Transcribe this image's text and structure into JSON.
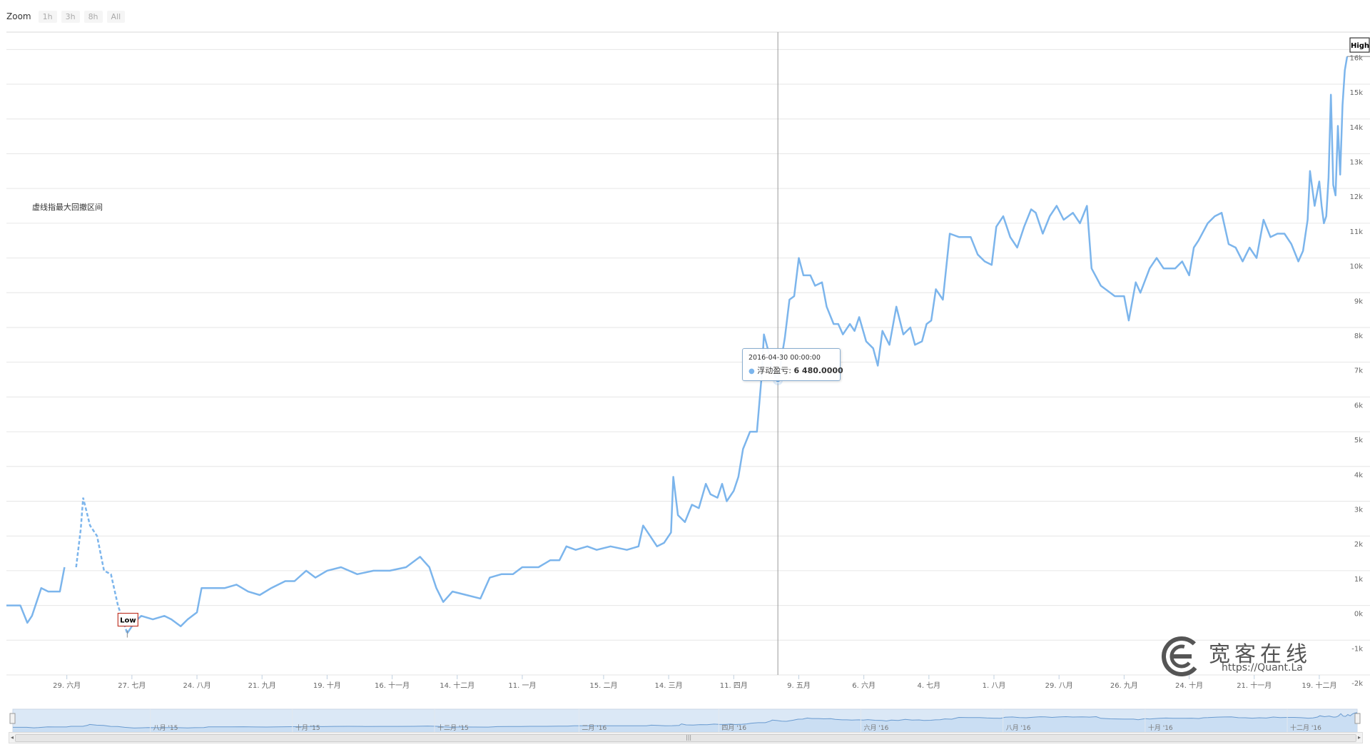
{
  "zoom": {
    "label": "Zoom",
    "buttons": [
      "1h",
      "3h",
      "8h",
      "All"
    ]
  },
  "annotation": "虚线指最大回撤区间",
  "tooltip": {
    "date": "2016-04-30 00:00:00",
    "series_label": "浮动盈亏",
    "value": "6 480.0000"
  },
  "flags": {
    "high": "High",
    "low": "Low"
  },
  "watermark": {
    "name": "宽客在线",
    "url": "https://Quant.La"
  },
  "colors": {
    "line": "#7cb5ec",
    "grid": "#e6e6e6",
    "navigator_fill": "#dbe8f6",
    "low_flag": "#c0392b"
  },
  "chart_data": {
    "type": "line",
    "title": "",
    "xlabel": "",
    "ylabel": "",
    "ylim": [
      -2000,
      16500
    ],
    "y_ticks": [
      -2000,
      -1000,
      0,
      1000,
      2000,
      3000,
      4000,
      5000,
      6000,
      7000,
      8000,
      9000,
      10000,
      11000,
      12000,
      13000,
      14000,
      15000,
      16000
    ],
    "y_tick_labels": [
      "-2k",
      "-1k",
      "0k",
      "1k",
      "2k",
      "3k",
      "4k",
      "5k",
      "6k",
      "7k",
      "8k",
      "9k",
      "10k",
      "11k",
      "12k",
      "13k",
      "14k",
      "15k",
      "16k"
    ],
    "x_tick_labels": [
      "29. 六月",
      "27. 七月",
      "24. 八月",
      "21. 九月",
      "19. 十月",
      "16. 十一月",
      "14. 十二月",
      "11. 一月",
      "15. 二月",
      "14. 三月",
      "11. 四月",
      "9. 五月",
      "6. 六月",
      "4. 七月",
      "1. 八月",
      "29. 八月",
      "26. 九月",
      "24. 十月",
      "21. 十一月",
      "19. 十二月"
    ],
    "x_tick_dates": [
      "2015-06-29",
      "2015-07-27",
      "2015-08-24",
      "2015-09-21",
      "2015-10-19",
      "2015-11-16",
      "2015-12-14",
      "2016-01-11",
      "2016-02-15",
      "2016-03-14",
      "2016-04-11",
      "2016-05-09",
      "2016-06-06",
      "2016-07-04",
      "2016-08-01",
      "2016-08-29",
      "2016-09-26",
      "2016-10-24",
      "2016-11-21",
      "2016-12-19"
    ],
    "x_range": [
      "2015-06-03",
      "2016-12-31"
    ],
    "navigator_labels": [
      "八月 '15",
      "十月 '15",
      "十二月 '15",
      "二月 '16",
      "四月 '16",
      "六月 '16",
      "八月 '16",
      "十月 '16",
      "十二月 '16"
    ],
    "navigator_dates": [
      "2015-08-01",
      "2015-10-01",
      "2015-12-01",
      "2016-02-01",
      "2016-04-01",
      "2016-06-01",
      "2016-08-01",
      "2016-10-01",
      "2016-12-01"
    ],
    "crosshair_date": "2016-04-30",
    "max_drawdown_range": [
      "2015-06-30",
      "2015-07-25"
    ],
    "low_point": {
      "x": "2015-07-25",
      "y": -800
    },
    "high_point": {
      "x": "2016-12-31",
      "y": 15800
    },
    "series": [
      {
        "points": [
          [
            "2015-06-03",
            0
          ],
          [
            "2015-06-09",
            0
          ],
          [
            "2015-06-12",
            -500
          ],
          [
            "2015-06-14",
            -300
          ],
          [
            "2015-06-18",
            500
          ],
          [
            "2015-06-21",
            400
          ],
          [
            "2015-06-26",
            400
          ],
          [
            "2015-06-28",
            1100
          ],
          [
            "2015-07-03",
            1100
          ],
          [
            "2015-07-05",
            2200
          ],
          [
            "2015-07-06",
            3100
          ],
          [
            "2015-07-09",
            2300
          ],
          [
            "2015-07-12",
            2000
          ],
          [
            "2015-07-15",
            1000
          ],
          [
            "2015-07-18",
            900
          ],
          [
            "2015-07-21",
            0
          ],
          [
            "2015-07-25",
            -800
          ],
          [
            "2015-07-28",
            -500
          ],
          [
            "2015-07-31",
            -300
          ],
          [
            "2015-08-05",
            -400
          ],
          [
            "2015-08-10",
            -300
          ],
          [
            "2015-08-13",
            -400
          ],
          [
            "2015-08-17",
            -600
          ],
          [
            "2015-08-20",
            -400
          ],
          [
            "2015-08-24",
            -200
          ],
          [
            "2015-08-26",
            500
          ],
          [
            "2015-08-28",
            500
          ],
          [
            "2015-09-05",
            500
          ],
          [
            "2015-09-10",
            600
          ],
          [
            "2015-09-15",
            400
          ],
          [
            "2015-09-20",
            300
          ],
          [
            "2015-09-25",
            500
          ],
          [
            "2015-10-01",
            700
          ],
          [
            "2015-10-05",
            700
          ],
          [
            "2015-10-10",
            1000
          ],
          [
            "2015-10-14",
            800
          ],
          [
            "2015-10-19",
            1000
          ],
          [
            "2015-10-25",
            1100
          ],
          [
            "2015-11-01",
            900
          ],
          [
            "2015-11-08",
            1000
          ],
          [
            "2015-11-15",
            1000
          ],
          [
            "2015-11-22",
            1100
          ],
          [
            "2015-11-28",
            1400
          ],
          [
            "2015-12-02",
            1100
          ],
          [
            "2015-12-05",
            500
          ],
          [
            "2015-12-08",
            100
          ],
          [
            "2015-12-12",
            400
          ],
          [
            "2015-12-18",
            300
          ],
          [
            "2015-12-24",
            200
          ],
          [
            "2015-12-28",
            800
          ],
          [
            "2016-01-02",
            900
          ],
          [
            "2016-01-07",
            900
          ],
          [
            "2016-01-11",
            1100
          ],
          [
            "2016-01-18",
            1100
          ],
          [
            "2016-01-23",
            1300
          ],
          [
            "2016-01-27",
            1300
          ],
          [
            "2016-01-30",
            1700
          ],
          [
            "2016-02-03",
            1600
          ],
          [
            "2016-02-08",
            1700
          ],
          [
            "2016-02-12",
            1600
          ],
          [
            "2016-02-18",
            1700
          ],
          [
            "2016-02-25",
            1600
          ],
          [
            "2016-03-01",
            1700
          ],
          [
            "2016-03-03",
            2300
          ],
          [
            "2016-03-06",
            2000
          ],
          [
            "2016-03-09",
            1700
          ],
          [
            "2016-03-12",
            1800
          ],
          [
            "2016-03-15",
            2100
          ],
          [
            "2016-03-16",
            3700
          ],
          [
            "2016-03-18",
            2600
          ],
          [
            "2016-03-21",
            2400
          ],
          [
            "2016-03-24",
            2900
          ],
          [
            "2016-03-27",
            2800
          ],
          [
            "2016-03-30",
            3500
          ],
          [
            "2016-04-01",
            3200
          ],
          [
            "2016-04-04",
            3100
          ],
          [
            "2016-04-06",
            3500
          ],
          [
            "2016-04-08",
            3000
          ],
          [
            "2016-04-11",
            3300
          ],
          [
            "2016-04-13",
            3700
          ],
          [
            "2016-04-15",
            4500
          ],
          [
            "2016-04-18",
            5000
          ],
          [
            "2016-04-21",
            5000
          ],
          [
            "2016-04-23",
            6600
          ],
          [
            "2016-04-24",
            7800
          ],
          [
            "2016-04-26",
            7300
          ],
          [
            "2016-04-28",
            6700
          ],
          [
            "2016-04-30",
            6480
          ],
          [
            "2016-05-03",
            7700
          ],
          [
            "2016-05-05",
            8800
          ],
          [
            "2016-05-07",
            8900
          ],
          [
            "2016-05-09",
            10000
          ],
          [
            "2016-05-11",
            9500
          ],
          [
            "2016-05-14",
            9500
          ],
          [
            "2016-05-16",
            9200
          ],
          [
            "2016-05-19",
            9300
          ],
          [
            "2016-05-21",
            8600
          ],
          [
            "2016-05-24",
            8100
          ],
          [
            "2016-05-26",
            8100
          ],
          [
            "2016-05-28",
            7800
          ],
          [
            "2016-05-31",
            8100
          ],
          [
            "2016-06-02",
            7900
          ],
          [
            "2016-06-04",
            8300
          ],
          [
            "2016-06-07",
            7600
          ],
          [
            "2016-06-10",
            7400
          ],
          [
            "2016-06-12",
            6900
          ],
          [
            "2016-06-14",
            7900
          ],
          [
            "2016-06-17",
            7500
          ],
          [
            "2016-06-20",
            8600
          ],
          [
            "2016-06-23",
            7800
          ],
          [
            "2016-06-26",
            8000
          ],
          [
            "2016-06-28",
            7500
          ],
          [
            "2016-07-01",
            7600
          ],
          [
            "2016-07-03",
            8100
          ],
          [
            "2016-07-05",
            8200
          ],
          [
            "2016-07-07",
            9100
          ],
          [
            "2016-07-10",
            8800
          ],
          [
            "2016-07-13",
            10700
          ],
          [
            "2016-07-17",
            10600
          ],
          [
            "2016-07-22",
            10600
          ],
          [
            "2016-07-25",
            10100
          ],
          [
            "2016-07-28",
            9900
          ],
          [
            "2016-07-31",
            9800
          ],
          [
            "2016-08-02",
            10900
          ],
          [
            "2016-08-05",
            11200
          ],
          [
            "2016-08-08",
            10600
          ],
          [
            "2016-08-11",
            10300
          ],
          [
            "2016-08-14",
            10900
          ],
          [
            "2016-08-17",
            11400
          ],
          [
            "2016-08-19",
            11300
          ],
          [
            "2016-08-22",
            10700
          ],
          [
            "2016-08-25",
            11200
          ],
          [
            "2016-08-28",
            11500
          ],
          [
            "2016-08-31",
            11100
          ],
          [
            "2016-09-04",
            11300
          ],
          [
            "2016-09-07",
            11000
          ],
          [
            "2016-09-10",
            11500
          ],
          [
            "2016-09-12",
            9700
          ],
          [
            "2016-09-16",
            9200
          ],
          [
            "2016-09-22",
            8900
          ],
          [
            "2016-09-26",
            8900
          ],
          [
            "2016-09-28",
            8200
          ],
          [
            "2016-10-01",
            9300
          ],
          [
            "2016-10-03",
            9000
          ],
          [
            "2016-10-07",
            9700
          ],
          [
            "2016-10-10",
            10000
          ],
          [
            "2016-10-13",
            9700
          ],
          [
            "2016-10-18",
            9700
          ],
          [
            "2016-10-21",
            9900
          ],
          [
            "2016-10-24",
            9500
          ],
          [
            "2016-10-26",
            10300
          ],
          [
            "2016-10-28",
            10500
          ],
          [
            "2016-11-01",
            11000
          ],
          [
            "2016-11-04",
            11200
          ],
          [
            "2016-11-07",
            11300
          ],
          [
            "2016-11-10",
            10400
          ],
          [
            "2016-11-13",
            10300
          ],
          [
            "2016-11-16",
            9900
          ],
          [
            "2016-11-19",
            10300
          ],
          [
            "2016-11-22",
            10000
          ],
          [
            "2016-11-25",
            11100
          ],
          [
            "2016-11-28",
            10600
          ],
          [
            "2016-12-01",
            10700
          ],
          [
            "2016-12-04",
            10700
          ],
          [
            "2016-12-07",
            10400
          ],
          [
            "2016-12-10",
            9900
          ],
          [
            "2016-12-12",
            10200
          ],
          [
            "2016-12-14",
            11100
          ],
          [
            "2016-12-15",
            12500
          ],
          [
            "2016-12-17",
            11500
          ],
          [
            "2016-12-19",
            12200
          ],
          [
            "2016-12-20",
            11500
          ],
          [
            "2016-12-21",
            11000
          ],
          [
            "2016-12-22",
            11200
          ],
          [
            "2016-12-23",
            12300
          ],
          [
            "2016-12-24",
            14700
          ],
          [
            "2016-12-25",
            12100
          ],
          [
            "2016-12-26",
            11800
          ],
          [
            "2016-12-27",
            13800
          ],
          [
            "2016-12-28",
            12400
          ],
          [
            "2016-12-29",
            14400
          ],
          [
            "2016-12-30",
            15400
          ],
          [
            "2016-12-31",
            15800
          ]
        ]
      }
    ]
  }
}
